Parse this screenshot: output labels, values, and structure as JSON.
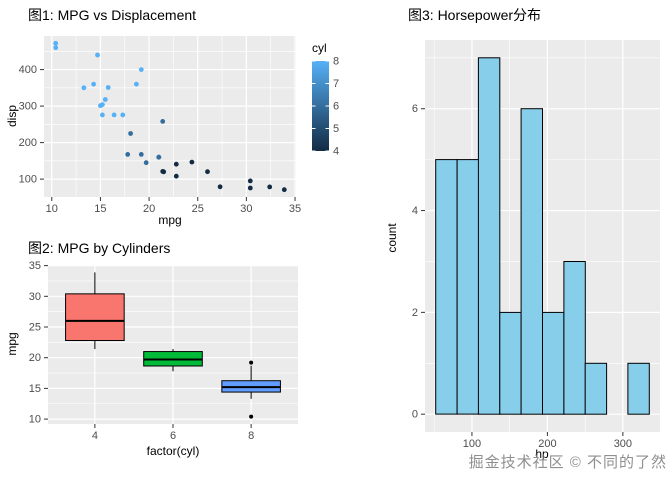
{
  "watermark": {
    "text": "掘金技术社区 © 不同的了然"
  },
  "theme": {
    "panel_bg": "#EBEBEB",
    "grid_major": "#FFFFFF",
    "tick_label_color": "#4D4D4D",
    "tick_mark_color": "#333333",
    "axis_title_color": "#000000"
  },
  "chart_data": [
    {
      "id": "scatter",
      "type": "scatter",
      "title": "图1: MPG vs Displacement",
      "xlabel": "mpg",
      "ylabel": "disp",
      "xlim": [
        9.2,
        35.1
      ],
      "ylim": [
        51,
        492
      ],
      "xticks": [
        10,
        15,
        20,
        25,
        30,
        35
      ],
      "yticks": [
        100,
        200,
        300,
        400
      ],
      "grid": true,
      "legend": {
        "title": "cyl",
        "type": "gradient-colorbar",
        "position": "right",
        "ticks": [
          8,
          7,
          6,
          5,
          4
        ],
        "domain": [
          4,
          8
        ],
        "color_low": "#132B43",
        "color_high": "#56B1F7"
      },
      "points": [
        [
          21.0,
          160,
          6
        ],
        [
          21.0,
          160,
          6
        ],
        [
          22.8,
          108,
          4
        ],
        [
          21.4,
          258,
          6
        ],
        [
          18.7,
          360,
          8
        ],
        [
          18.1,
          225,
          6
        ],
        [
          14.3,
          360,
          8
        ],
        [
          24.4,
          146.7,
          4
        ],
        [
          22.8,
          140.8,
          4
        ],
        [
          19.2,
          167.6,
          6
        ],
        [
          17.8,
          167.6,
          6
        ],
        [
          16.4,
          275.8,
          8
        ],
        [
          17.3,
          275.8,
          8
        ],
        [
          15.2,
          275.8,
          8
        ],
        [
          10.4,
          472,
          8
        ],
        [
          10.4,
          460,
          8
        ],
        [
          14.7,
          440,
          8
        ],
        [
          32.4,
          78.7,
          4
        ],
        [
          30.4,
          75.7,
          4
        ],
        [
          33.9,
          71.1,
          4
        ],
        [
          21.5,
          120.1,
          4
        ],
        [
          15.5,
          318,
          8
        ],
        [
          15.2,
          304,
          8
        ],
        [
          13.3,
          350,
          8
        ],
        [
          19.2,
          400,
          8
        ],
        [
          27.3,
          79,
          4
        ],
        [
          26.0,
          120.3,
          4
        ],
        [
          30.4,
          95.1,
          4
        ],
        [
          15.8,
          351,
          8
        ],
        [
          19.7,
          145,
          6
        ],
        [
          15.0,
          301,
          8
        ],
        [
          21.4,
          121,
          4
        ]
      ]
    },
    {
      "id": "boxplot",
      "type": "box",
      "title": "图2: MPG by Cylinders",
      "xlabel": "factor(cyl)",
      "ylabel": "mpg",
      "ylim": [
        9.2,
        35.1
      ],
      "yticks": [
        10,
        15,
        20,
        25,
        30,
        35
      ],
      "grid": true,
      "categories": [
        "4",
        "6",
        "8"
      ],
      "boxes": [
        {
          "category": "4",
          "fill": "#F8766D",
          "low": 21.4,
          "q1": 22.8,
          "median": 26.0,
          "q3": 30.4,
          "high": 33.9,
          "outliers": []
        },
        {
          "category": "6",
          "fill": "#00BA38",
          "low": 17.8,
          "q1": 18.65,
          "median": 19.7,
          "q3": 21.0,
          "high": 21.4,
          "outliers": []
        },
        {
          "category": "8",
          "fill": "#619CFF",
          "low": 13.3,
          "q1": 14.4,
          "median": 15.2,
          "q3": 16.25,
          "high": 18.7,
          "outliers": [
            10.4,
            19.2
          ]
        }
      ]
    },
    {
      "id": "histogram",
      "type": "histogram",
      "title": "图3: Horsepower分布",
      "xlabel": "hp",
      "ylabel": "count",
      "xlim": [
        37.8,
        349.2
      ],
      "ylim": [
        -0.35,
        7.35
      ],
      "xticks": [
        100,
        200,
        300
      ],
      "yticks": [
        0,
        2,
        4,
        6
      ],
      "grid": true,
      "fill": "#87CEEB",
      "stroke": "#000000",
      "bins": {
        "start": 52,
        "width": 28.3,
        "counts": [
          5,
          5,
          7,
          2,
          6,
          2,
          3,
          1,
          0,
          1
        ]
      }
    }
  ]
}
